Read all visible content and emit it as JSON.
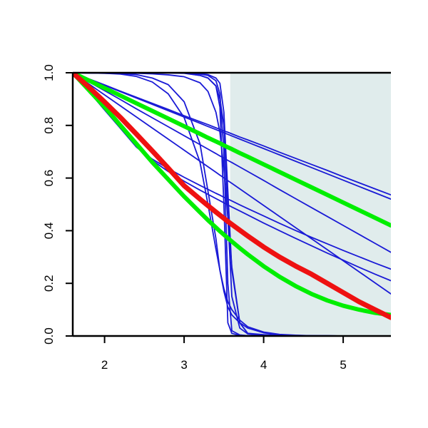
{
  "chart_data": {
    "type": "line",
    "title": "",
    "xlabel": "",
    "ylabel": "",
    "xlim": [
      1.6,
      5.6
    ],
    "ylim": [
      0.0,
      1.0
    ],
    "grid": false,
    "legend": "none",
    "x_ticks": [
      2,
      3,
      4,
      5
    ],
    "x_tick_labels": [
      "2",
      "3",
      "4",
      "5"
    ],
    "y_ticks": [
      0.0,
      0.2,
      0.4,
      0.6,
      0.8,
      1.0
    ],
    "y_tick_labels": [
      "0.0",
      "0.2",
      "0.4",
      "0.6",
      "0.8",
      "1.0"
    ],
    "shaded_region": {
      "x": [
        3.58,
        5.6
      ],
      "y": [
        0.0,
        1.0
      ],
      "color": "#e0ecec"
    },
    "colors": {
      "thin": "#1a1ad6",
      "green": "#00ee00",
      "red": "#ee1111",
      "axis": "#000000"
    },
    "x": [
      1.6,
      1.8,
      2.0,
      2.2,
      2.4,
      2.6,
      2.8,
      3.0,
      3.2,
      3.3,
      3.4,
      3.45,
      3.5,
      3.55,
      3.6,
      3.7,
      3.8,
      4.0,
      4.2,
      4.4,
      4.6,
      4.8,
      5.0,
      5.2,
      5.4,
      5.6
    ],
    "series": [
      {
        "group": "thin",
        "values": [
          1.0,
          0.977,
          0.954,
          0.93,
          0.907,
          0.884,
          0.861,
          0.837,
          0.814,
          0.803,
          0.791,
          0.785,
          0.779,
          0.774,
          0.768,
          0.756,
          0.745,
          0.722,
          0.698,
          0.675,
          0.652,
          0.629,
          0.605,
          0.582,
          0.559,
          0.536
        ]
      },
      {
        "group": "thin",
        "values": [
          1.0,
          0.976,
          0.952,
          0.928,
          0.904,
          0.88,
          0.856,
          0.832,
          0.808,
          0.796,
          0.784,
          0.778,
          0.772,
          0.766,
          0.76,
          0.748,
          0.736,
          0.712,
          0.688,
          0.664,
          0.64,
          0.616,
          0.592,
          0.568,
          0.544,
          0.52
        ]
      },
      {
        "group": "thin",
        "values": [
          1.0,
          0.966,
          0.932,
          0.898,
          0.863,
          0.829,
          0.795,
          0.761,
          0.727,
          0.71,
          0.693,
          0.684,
          0.676,
          0.667,
          0.659,
          0.642,
          0.625,
          0.591,
          0.556,
          0.522,
          0.488,
          0.454,
          0.42,
          0.386,
          0.352,
          0.318
        ]
      },
      {
        "group": "thin",
        "values": [
          1.0,
          0.958,
          0.916,
          0.874,
          0.832,
          0.79,
          0.748,
          0.706,
          0.664,
          0.643,
          0.622,
          0.611,
          0.601,
          0.59,
          0.58,
          0.559,
          0.538,
          0.496,
          0.454,
          0.412,
          0.37,
          0.328,
          0.286,
          0.244,
          0.202,
          0.16
        ]
      },
      {
        "group": "thin",
        "values": [
          1.0,
          0.93,
          0.859,
          0.789,
          0.718,
          0.667,
          0.625,
          0.588,
          0.554,
          0.538,
          0.522,
          0.514,
          0.506,
          0.498,
          0.49,
          0.475,
          0.46,
          0.429,
          0.4,
          0.371,
          0.343,
          0.315,
          0.288,
          0.261,
          0.235,
          0.21
        ]
      },
      {
        "group": "thin",
        "values": [
          1.0,
          0.93,
          0.859,
          0.789,
          0.718,
          0.672,
          0.636,
          0.603,
          0.572,
          0.557,
          0.542,
          0.535,
          0.527,
          0.52,
          0.513,
          0.498,
          0.484,
          0.456,
          0.428,
          0.401,
          0.375,
          0.35,
          0.325,
          0.301,
          0.277,
          0.254
        ]
      },
      {
        "group": "thin",
        "values": [
          1.0,
          0.999,
          0.999,
          0.999,
          0.998,
          0.996,
          0.992,
          0.985,
          0.962,
          0.929,
          0.85,
          0.774,
          0.634,
          0.452,
          0.262,
          0.05,
          0.01,
          0.005,
          0.003,
          0.002,
          0.001,
          0.001,
          0.0,
          0.0,
          0.0,
          0.0
        ]
      },
      {
        "group": "thin",
        "values": [
          1.0,
          0.999,
          0.998,
          0.995,
          0.986,
          0.965,
          0.92,
          0.83,
          0.66,
          0.5,
          0.33,
          0.25,
          0.18,
          0.13,
          0.1,
          0.06,
          0.035,
          0.015,
          0.006,
          0.003,
          0.001,
          0.001,
          0.0,
          0.0,
          0.0,
          0.0
        ]
      },
      {
        "group": "thin",
        "values": [
          1.0,
          0.999,
          0.998,
          0.997,
          0.993,
          0.98,
          0.955,
          0.89,
          0.73,
          0.55,
          0.37,
          0.25,
          0.17,
          0.11,
          0.08,
          0.05,
          0.03,
          0.012,
          0.005,
          0.002,
          0.001,
          0.0,
          0.0,
          0.0,
          0.0,
          0.0
        ]
      },
      {
        "group": "thin",
        "values": [
          1.0,
          1.0,
          1.0,
          1.0,
          1.0,
          1.0,
          1.0,
          0.999,
          0.99,
          0.98,
          0.95,
          0.87,
          0.5,
          0.05,
          0.01,
          0.002,
          0.001,
          0.0,
          0.0,
          0.0,
          0.0,
          0.0,
          0.0,
          0.0,
          0.0,
          0.0
        ]
      },
      {
        "group": "thin",
        "values": [
          1.0,
          1.0,
          1.0,
          1.0,
          1.0,
          1.0,
          1.0,
          0.999,
          0.995,
          0.99,
          0.97,
          0.92,
          0.7,
          0.2,
          0.02,
          0.004,
          0.001,
          0.0,
          0.0,
          0.0,
          0.0,
          0.0,
          0.0,
          0.0,
          0.0,
          0.0
        ]
      },
      {
        "group": "thin",
        "values": [
          1.0,
          1.0,
          1.0,
          1.0,
          1.0,
          1.0,
          0.999,
          0.998,
          0.99,
          0.98,
          0.95,
          0.9,
          0.8,
          0.45,
          0.15,
          0.03,
          0.008,
          0.002,
          0.0,
          0.0,
          0.0,
          0.0,
          0.0,
          0.0,
          0.0,
          0.0
        ]
      },
      {
        "group": "thin",
        "values": [
          1.0,
          1.0,
          1.0,
          1.0,
          1.0,
          1.0,
          1.0,
          0.999,
          0.997,
          0.993,
          0.98,
          0.96,
          0.85,
          0.55,
          0.25,
          0.05,
          0.01,
          0.002,
          0.0,
          0.0,
          0.0,
          0.0,
          0.0,
          0.0,
          0.0,
          0.0
        ]
      },
      {
        "group": "green",
        "values": [
          1.0,
          0.971,
          0.942,
          0.913,
          0.884,
          0.855,
          0.826,
          0.797,
          0.768,
          0.753,
          0.739,
          0.732,
          0.724,
          0.717,
          0.71,
          0.695,
          0.681,
          0.652,
          0.623,
          0.594,
          0.565,
          0.536,
          0.507,
          0.478,
          0.449,
          0.42
        ]
      },
      {
        "group": "green",
        "values": [
          1.0,
          0.935,
          0.87,
          0.8,
          0.73,
          0.66,
          0.595,
          0.53,
          0.47,
          0.44,
          0.412,
          0.398,
          0.385,
          0.372,
          0.359,
          0.334,
          0.31,
          0.265,
          0.225,
          0.19,
          0.16,
          0.135,
          0.115,
          0.1,
          0.088,
          0.08
        ]
      },
      {
        "group": "red",
        "values": [
          1.0,
          0.946,
          0.889,
          0.83,
          0.767,
          0.703,
          0.638,
          0.571,
          0.52,
          0.495,
          0.471,
          0.459,
          0.447,
          0.435,
          0.424,
          0.402,
          0.38,
          0.338,
          0.3,
          0.266,
          0.235,
          0.2,
          0.165,
          0.13,
          0.1,
          0.07
        ]
      }
    ]
  }
}
